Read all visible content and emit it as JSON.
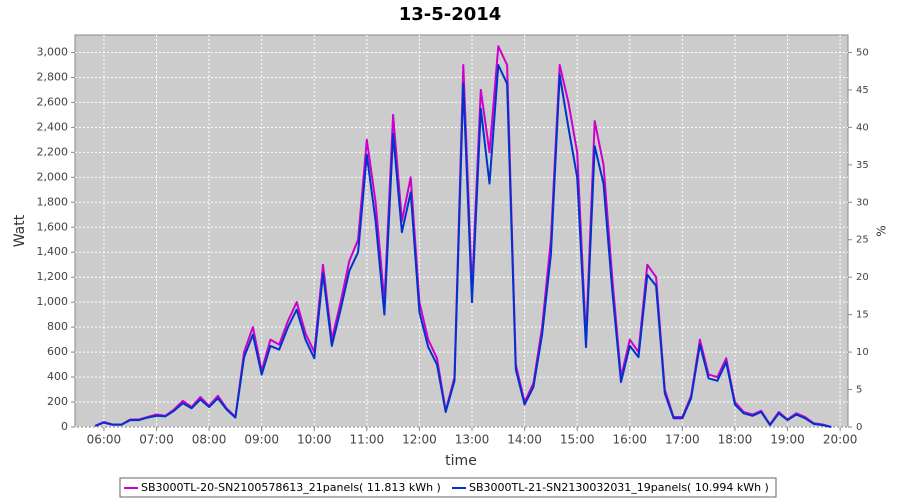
{
  "chart_data": {
    "type": "line",
    "title": "13-5-2014",
    "xlabel": "time",
    "ylabel": "Watt",
    "y2label": "%",
    "x": [
      350,
      360,
      370,
      380,
      390,
      400,
      410,
      420,
      430,
      440,
      450,
      460,
      470,
      480,
      490,
      500,
      510,
      520,
      530,
      540,
      550,
      560,
      570,
      580,
      590,
      600,
      610,
      620,
      630,
      640,
      650,
      660,
      670,
      680,
      690,
      700,
      710,
      720,
      730,
      740,
      750,
      760,
      770,
      780,
      790,
      800,
      810,
      820,
      830,
      840,
      850,
      860,
      870,
      880,
      890,
      900,
      910,
      920,
      930,
      940,
      950,
      960,
      970,
      980,
      990,
      1000,
      1010,
      1020,
      1030,
      1040,
      1050,
      1060,
      1070,
      1080,
      1090,
      1100,
      1110,
      1120,
      1130,
      1140,
      1150,
      1160,
      1170,
      1180,
      1190
    ],
    "series": [
      {
        "name": "SB3000TL-20-SN2100578613_21panels( 11.813 kWh )",
        "color": "#cc00cc",
        "values": [
          10,
          40,
          20,
          20,
          60,
          60,
          80,
          100,
          90,
          140,
          210,
          160,
          240,
          170,
          250,
          150,
          80,
          600,
          800,
          450,
          700,
          660,
          850,
          1000,
          750,
          600,
          1300,
          700,
          1000,
          1330,
          1500,
          2300,
          1800,
          1000,
          2500,
          1650,
          2000,
          1000,
          700,
          550,
          130,
          400,
          2900,
          1100,
          2700,
          2200,
          3050,
          2900,
          500,
          200,
          350,
          800,
          1500,
          2900,
          2600,
          2200,
          700,
          2450,
          2100,
          1200,
          400,
          700,
          600,
          1300,
          1200,
          300,
          80,
          80,
          250,
          700,
          420,
          400,
          550,
          200,
          120,
          100,
          130,
          20,
          120,
          60,
          110,
          80,
          30,
          20,
          0
        ]
      },
      {
        "name": "SB3000TL-21-SN2130032031_19panels( 10.994 kWh )",
        "color": "#0033cc",
        "values": [
          8,
          35,
          18,
          18,
          55,
          55,
          75,
          90,
          85,
          130,
          190,
          150,
          220,
          160,
          230,
          140,
          75,
          560,
          740,
          420,
          650,
          620,
          800,
          940,
          700,
          550,
          1230,
          650,
          940,
          1250,
          1400,
          2180,
          1650,
          900,
          2350,
          1560,
          1880,
          920,
          640,
          500,
          120,
          370,
          2750,
          1000,
          2550,
          1950,
          2900,
          2750,
          460,
          180,
          320,
          740,
          1380,
          2820,
          2400,
          2000,
          640,
          2250,
          1950,
          1100,
          360,
          650,
          560,
          1220,
          1130,
          270,
          70,
          70,
          230,
          660,
          390,
          370,
          520,
          180,
          110,
          90,
          120,
          15,
          110,
          55,
          100,
          70,
          25,
          15,
          0
        ]
      }
    ],
    "xlim": [
      327,
      1209
    ],
    "xticks": [
      {
        "value": 360,
        "label": "06:00"
      },
      {
        "value": 420,
        "label": "07:00"
      },
      {
        "value": 480,
        "label": "08:00"
      },
      {
        "value": 540,
        "label": "09:00"
      },
      {
        "value": 600,
        "label": "10:00"
      },
      {
        "value": 660,
        "label": "11:00"
      },
      {
        "value": 720,
        "label": "12:00"
      },
      {
        "value": 780,
        "label": "13:00"
      },
      {
        "value": 840,
        "label": "14:00"
      },
      {
        "value": 900,
        "label": "15:00"
      },
      {
        "value": 960,
        "label": "16:00"
      },
      {
        "value": 1020,
        "label": "17:00"
      },
      {
        "value": 1080,
        "label": "18:00"
      },
      {
        "value": 1140,
        "label": "19:00"
      },
      {
        "value": 1200,
        "label": "20:00"
      }
    ],
    "ylim": [
      0,
      3140
    ],
    "yticks": [
      0,
      200,
      400,
      600,
      800,
      {
        "value": 1000,
        "label": "1,000"
      },
      {
        "value": 1200,
        "label": "1,200"
      },
      {
        "value": 1400,
        "label": "1,400"
      },
      {
        "value": 1600,
        "label": "1,600"
      },
      {
        "value": 1800,
        "label": "1,800"
      },
      {
        "value": 2000,
        "label": "2,000"
      },
      {
        "value": 2200,
        "label": "2,200"
      },
      {
        "value": 2400,
        "label": "2,400"
      },
      {
        "value": 2600,
        "label": "2,600"
      },
      {
        "value": 2800,
        "label": "2,800"
      },
      {
        "value": 3000,
        "label": "3,000"
      }
    ],
    "y2lim": [
      0,
      52.33
    ],
    "y2ticks": [
      0,
      5,
      10,
      15,
      20,
      25,
      30,
      35,
      40,
      45,
      50
    ],
    "grid": true,
    "legend": "bottom"
  }
}
